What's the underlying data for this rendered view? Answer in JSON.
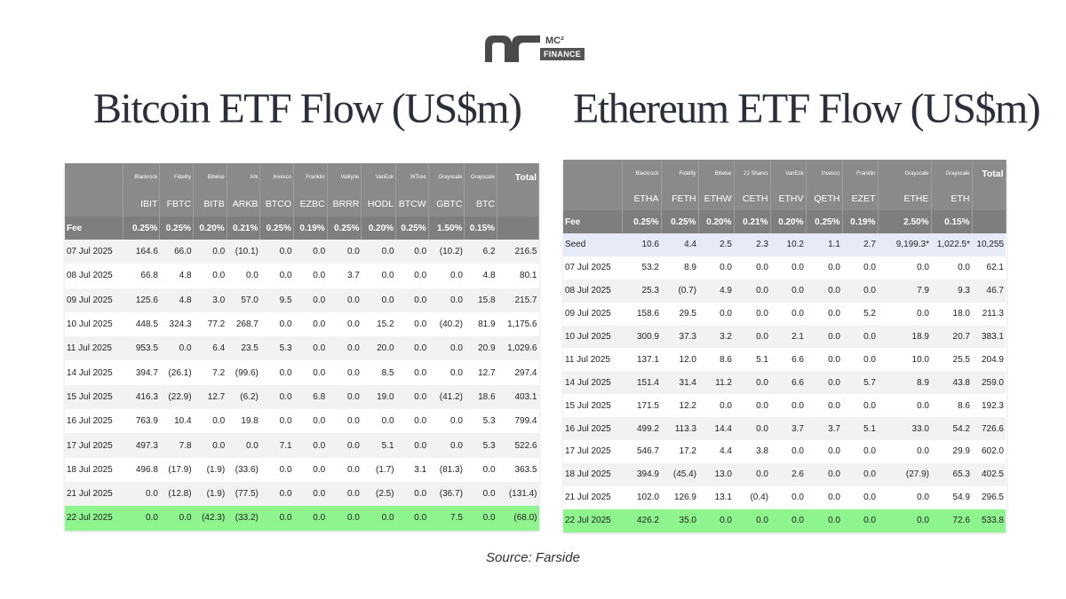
{
  "logo": {
    "top_text": "MC²",
    "bottom_text": "FINANCE"
  },
  "btc": {
    "title": "Bitcoin ETF Flow (US$m)",
    "issuers": [
      "Blackrock",
      "Fidelity",
      "Bitwise",
      "Ark",
      "Invesco",
      "Franklin",
      "Valkyrie",
      "VanEck",
      "WTree",
      "Grayscale",
      "Grayscale"
    ],
    "tickers": [
      "IBIT",
      "FBTC",
      "BITB",
      "ARKB",
      "BTCO",
      "EZBC",
      "BRRR",
      "HODL",
      "BTCW",
      "GBTC",
      "BTC"
    ],
    "total_label": "Total",
    "fee_label": "Fee",
    "fees": [
      "0.25%",
      "0.25%",
      "0.20%",
      "0.21%",
      "0.25%",
      "0.19%",
      "0.25%",
      "0.20%",
      "0.25%",
      "1.50%",
      "0.15%"
    ],
    "rows": [
      {
        "date": "07 Jul 2025",
        "values": [
          "164.6",
          "66.0",
          "0.0",
          "(10.1)",
          "0.0",
          "0.0",
          "0.0",
          "0.0",
          "0.0",
          "(10.2)",
          "6.2"
        ],
        "total": "216.5"
      },
      {
        "date": "08 Jul 2025",
        "values": [
          "66.8",
          "4.8",
          "0.0",
          "0.0",
          "0.0",
          "0.0",
          "3.7",
          "0.0",
          "0.0",
          "0.0",
          "4.8"
        ],
        "total": "80.1"
      },
      {
        "date": "09 Jul 2025",
        "values": [
          "125.6",
          "4.8",
          "3.0",
          "57.0",
          "9.5",
          "0.0",
          "0.0",
          "0.0",
          "0.0",
          "0.0",
          "15.8"
        ],
        "total": "215.7"
      },
      {
        "date": "10 Jul 2025",
        "values": [
          "448.5",
          "324.3",
          "77.2",
          "268.7",
          "0.0",
          "0.0",
          "0.0",
          "15.2",
          "0.0",
          "(40.2)",
          "81.9"
        ],
        "total": "1,175.6"
      },
      {
        "date": "11 Jul 2025",
        "values": [
          "953.5",
          "0.0",
          "6.4",
          "23.5",
          "5.3",
          "0.0",
          "0.0",
          "20.0",
          "0.0",
          "0.0",
          "20.9"
        ],
        "total": "1,029.6"
      },
      {
        "date": "14 Jul 2025",
        "values": [
          "394.7",
          "(26.1)",
          "7.2",
          "(99.6)",
          "0.0",
          "0.0",
          "0.0",
          "8.5",
          "0.0",
          "0.0",
          "12.7"
        ],
        "total": "297.4"
      },
      {
        "date": "15 Jul 2025",
        "values": [
          "416.3",
          "(22.9)",
          "12.7",
          "(6.2)",
          "0.0",
          "6.8",
          "0.0",
          "19.0",
          "0.0",
          "(41.2)",
          "18.6"
        ],
        "total": "403.1"
      },
      {
        "date": "16 Jul 2025",
        "values": [
          "763.9",
          "10.4",
          "0.0",
          "19.8",
          "0.0",
          "0.0",
          "0.0",
          "0.0",
          "0.0",
          "0.0",
          "5.3"
        ],
        "total": "799.4"
      },
      {
        "date": "17 Jul 2025",
        "values": [
          "497.3",
          "7.8",
          "0.0",
          "0.0",
          "7.1",
          "0.0",
          "0.0",
          "5.1",
          "0.0",
          "0.0",
          "5.3"
        ],
        "total": "522.6"
      },
      {
        "date": "18 Jul 2025",
        "values": [
          "496.8",
          "(17.9)",
          "(1.9)",
          "(33.6)",
          "0.0",
          "0.0",
          "0.0",
          "(1.7)",
          "3.1",
          "(81.3)",
          "0.0"
        ],
        "total": "363.5"
      },
      {
        "date": "21 Jul 2025",
        "values": [
          "0.0",
          "(12.8)",
          "(1.9)",
          "(77.5)",
          "0.0",
          "0.0",
          "0.0",
          "(2.5)",
          "0.0",
          "(36.7)",
          "0.0"
        ],
        "total": "(131.4)"
      },
      {
        "date": "22 Jul 2025",
        "values": [
          "0.0",
          "0.0",
          "(42.3)",
          "(33.2)",
          "0.0",
          "0.0",
          "0.0",
          "0.0",
          "0.0",
          "7.5",
          "0.0"
        ],
        "total": "(68.0)"
      }
    ]
  },
  "eth": {
    "title": "Ethereum ETF Flow (US$m)",
    "issuers": [
      "Blackrock",
      "Fidelity",
      "Bitwise",
      "21 Shares",
      "VanEck",
      "Invesco",
      "Franklin",
      "Grayscale",
      "Grayscale"
    ],
    "tickers": [
      "ETHA",
      "FETH",
      "ETHW",
      "CETH",
      "ETHV",
      "QETH",
      "EZET",
      "ETHE",
      "ETH"
    ],
    "total_label": "Total",
    "fee_label": "Fee",
    "fees": [
      "0.25%",
      "0.25%",
      "0.20%",
      "0.21%",
      "0.20%",
      "0.25%",
      "0.19%",
      "2.50%",
      "0.15%"
    ],
    "rows": [
      {
        "date": "Seed",
        "values": [
          "10.6",
          "4.4",
          "2.5",
          "2.3",
          "10.2",
          "1.1",
          "2.7",
          "9,199.3*",
          "1,022.5*"
        ],
        "total": "10,255"
      },
      {
        "date": "07 Jul 2025",
        "values": [
          "53.2",
          "8.9",
          "0.0",
          "0.0",
          "0.0",
          "0.0",
          "0.0",
          "0.0",
          "0.0"
        ],
        "total": "62.1"
      },
      {
        "date": "08 Jul 2025",
        "values": [
          "25.3",
          "(0.7)",
          "4.9",
          "0.0",
          "0.0",
          "0.0",
          "0.0",
          "7.9",
          "9.3"
        ],
        "total": "46.7"
      },
      {
        "date": "09 Jul 2025",
        "values": [
          "158.6",
          "29.5",
          "0.0",
          "0.0",
          "0.0",
          "0.0",
          "5.2",
          "0.0",
          "18.0"
        ],
        "total": "211.3"
      },
      {
        "date": "10 Jul 2025",
        "values": [
          "300.9",
          "37.3",
          "3.2",
          "0.0",
          "2.1",
          "0.0",
          "0.0",
          "18.9",
          "20.7"
        ],
        "total": "383.1"
      },
      {
        "date": "11 Jul 2025",
        "values": [
          "137.1",
          "12.0",
          "8.6",
          "5.1",
          "6.6",
          "0.0",
          "0.0",
          "10.0",
          "25.5"
        ],
        "total": "204.9"
      },
      {
        "date": "14 Jul 2025",
        "values": [
          "151.4",
          "31.4",
          "11.2",
          "0.0",
          "6.6",
          "0.0",
          "5.7",
          "8.9",
          "43.8"
        ],
        "total": "259.0"
      },
      {
        "date": "15 Jul 2025",
        "values": [
          "171.5",
          "12.2",
          "0.0",
          "0.0",
          "0.0",
          "0.0",
          "0.0",
          "0.0",
          "8.6"
        ],
        "total": "192.3"
      },
      {
        "date": "16 Jul 2025",
        "values": [
          "499.2",
          "113.3",
          "14.4",
          "0.0",
          "3.7",
          "3.7",
          "5.1",
          "33.0",
          "54.2"
        ],
        "total": "726.6"
      },
      {
        "date": "17 Jul 2025",
        "values": [
          "546.7",
          "17.2",
          "4.4",
          "3.8",
          "0.0",
          "0.0",
          "0.0",
          "0.0",
          "29.9"
        ],
        "total": "602.0"
      },
      {
        "date": "18 Jul 2025",
        "values": [
          "394.9",
          "(45.4)",
          "13.0",
          "0.0",
          "2.6",
          "0.0",
          "0.0",
          "(27.9)",
          "65.3"
        ],
        "total": "402.5"
      },
      {
        "date": "21 Jul 2025",
        "values": [
          "102.0",
          "126.9",
          "13.1",
          "(0.4)",
          "0.0",
          "0.0",
          "0.0",
          "0.0",
          "54.9"
        ],
        "total": "296.5"
      },
      {
        "date": "22 Jul 2025",
        "values": [
          "426.2",
          "35.0",
          "0.0",
          "0.0",
          "0.0",
          "0.0",
          "0.0",
          "0.0",
          "72.6"
        ],
        "total": "533.8"
      }
    ]
  },
  "source": "Source: Farside"
}
